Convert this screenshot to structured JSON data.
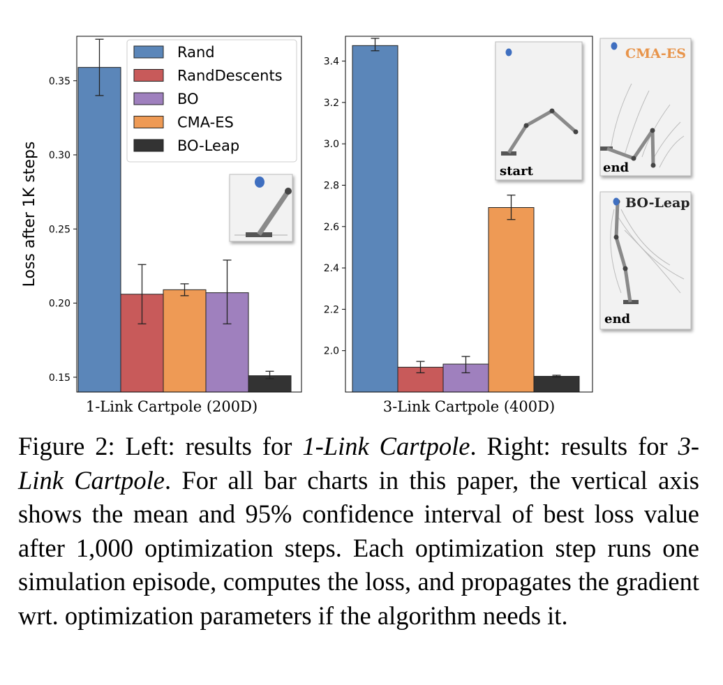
{
  "chart_data": [
    {
      "type": "bar",
      "xlabel": "1-Link Cartpole (200D)",
      "ylabel": "Loss after 1K steps",
      "ylim": [
        0.14,
        0.38
      ],
      "yticks": [
        0.15,
        0.2,
        0.25,
        0.3,
        0.35
      ],
      "ytick_labels": [
        "0.15",
        "0.20",
        "0.25",
        "0.30",
        "0.35"
      ],
      "series": [
        {
          "name": "Rand",
          "value": 0.359,
          "err_low": 0.34,
          "err_high": 0.378
        },
        {
          "name": "RandDescents",
          "value": 0.206,
          "err_low": 0.186,
          "err_high": 0.226
        },
        {
          "name": "CMA-ES",
          "value": 0.209,
          "err_low": 0.205,
          "err_high": 0.213
        },
        {
          "name": "BO",
          "value": 0.207,
          "err_low": 0.186,
          "err_high": 0.229
        },
        {
          "name": "BO-Leap",
          "value": 0.151,
          "err_low": 0.149,
          "err_high": 0.154
        }
      ],
      "legend": {
        "placement": "top-right",
        "entries": [
          "Rand",
          "RandDescents",
          "BO",
          "CMA-ES",
          "BO-Leap"
        ]
      },
      "grid": false
    },
    {
      "type": "bar",
      "xlabel": "3-Link Cartpole (400D)",
      "ylabel": "",
      "ylim": [
        1.8,
        3.52
      ],
      "yticks": [
        2.0,
        2.2,
        2.4,
        2.6,
        2.8,
        3.0,
        3.2,
        3.4
      ],
      "ytick_labels": [
        "2.0",
        "2.2",
        "2.4",
        "2.6",
        "2.8",
        "3.0",
        "3.2",
        "3.4"
      ],
      "series": [
        {
          "name": "Rand",
          "value": 3.475,
          "err_low": 3.45,
          "err_high": 3.51
        },
        {
          "name": "RandDescents",
          "value": 1.92,
          "err_low": 1.893,
          "err_high": 1.948
        },
        {
          "name": "BO",
          "value": 1.935,
          "err_low": 1.893,
          "err_high": 1.972
        },
        {
          "name": "CMA-ES",
          "value": 2.692,
          "err_low": 2.634,
          "err_high": 2.752
        },
        {
          "name": "BO-Leap",
          "value": 1.876,
          "err_low": 1.872,
          "err_high": 1.881
        }
      ],
      "grid": false
    }
  ],
  "colors": {
    "Rand": "#5b86b9",
    "RandDescents": "#c85a5a",
    "BO": "#9f80be",
    "CMA-ES": "#ee9a55",
    "BO-Leap": "#333333",
    "cmaes_title": "#e8944a"
  },
  "insets": {
    "start_label": "start",
    "end_label": "end",
    "cmaes_title": "CMA-ES",
    "boleap_title": "BO-Leap"
  },
  "caption": {
    "figure_label": "Figure 2:",
    "left_prefix": "Left: results for",
    "left_name": "1-Link Cartpole",
    "right_prefix": ". Right: results for",
    "right_name": "3-Link Cartpole",
    "rest": ". For all bar charts in this paper, the vertical axis shows the mean and 95% confidence interval of best loss value after 1,000 optimization steps. Each optimization step runs one simulation episode, computes the loss, and propagates the gradient wrt. optimization parameters if the algorithm needs it."
  }
}
